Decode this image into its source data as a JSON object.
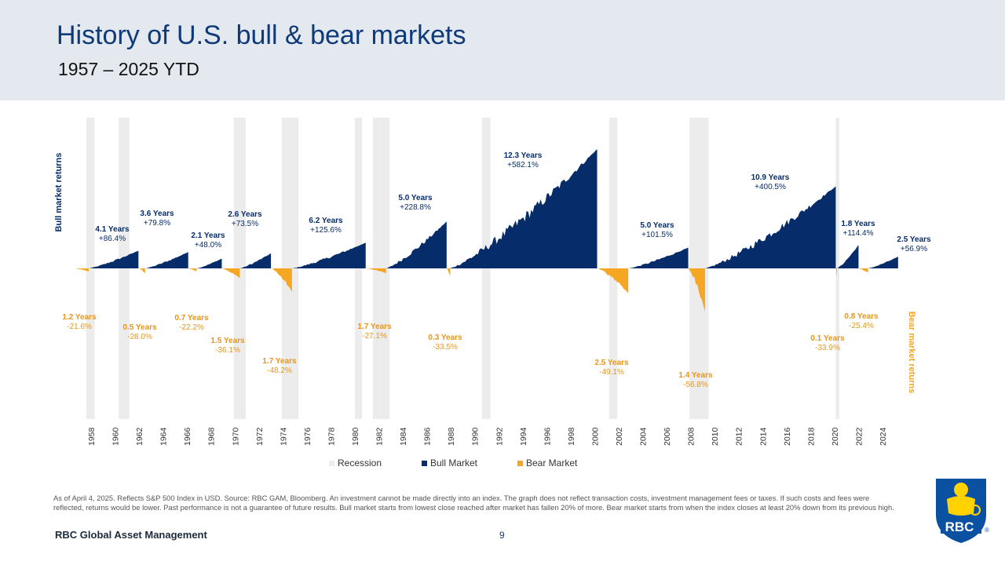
{
  "header": {
    "title": "History of U.S. bull & bear markets",
    "subtitle": "1957 – 2025 YTD"
  },
  "legend": {
    "recession": "Recession",
    "bull": "Bull Market",
    "bear": "Bear Market"
  },
  "colors": {
    "bull": "#062d6a",
    "bear": "#f5a623",
    "recession": "#ececec",
    "header_bg": "#e3e9ee",
    "title": "#0f3a7a"
  },
  "footnote": "As of April 4, 2025. Reflects S&P 500 Index in USD. Source: RBC GAM, Bloomberg. An investment cannot be made directly into an index. The graph does not reflect transaction costs, investment management fees or taxes. If such costs and fees were reflected, returns would be lower. Past performance is not a guarantee of future results. Bull market starts from lowest close reached after market has fallen 20% of more. Bear market starts from when the index closes at least 20% down from its previous high.",
  "brand": "RBC Global Asset Management",
  "page_number": "9",
  "logo_text": "RBC",
  "logo_icon": "rbc-lion-shield-logo",
  "chart_data": {
    "type": "area",
    "x_axis": {
      "ticks": [
        "1958",
        "1960",
        "1962",
        "1964",
        "1966",
        "1968",
        "1970",
        "1972",
        "1974",
        "1976",
        "1978",
        "1980",
        "1982",
        "1984",
        "1986",
        "1988",
        "1990",
        "1992",
        "1994",
        "1996",
        "1998",
        "2000",
        "2002",
        "2004",
        "2006",
        "2008",
        "2010",
        "2012",
        "2014",
        "2016",
        "2018",
        "2020",
        "2022",
        "2024"
      ]
    },
    "y_axis_labels": {
      "top": "Bull market returns",
      "bottom": "Bear market returns"
    },
    "recessions": [
      {
        "start": 1957.6,
        "end": 1958.3
      },
      {
        "start": 1960.3,
        "end": 1961.2
      },
      {
        "start": 1969.9,
        "end": 1970.9
      },
      {
        "start": 1973.9,
        "end": 1975.3
      },
      {
        "start": 1980.0,
        "end": 1980.6
      },
      {
        "start": 1981.5,
        "end": 1982.9
      },
      {
        "start": 1990.6,
        "end": 1991.3
      },
      {
        "start": 2001.2,
        "end": 2001.9
      },
      {
        "start": 2007.9,
        "end": 2009.5
      },
      {
        "start": 2020.1,
        "end": 2020.4
      }
    ],
    "bull_markets": [
      {
        "start": 1957.8,
        "end": 1961.95,
        "duration": "4.1 Years",
        "return": 86.4,
        "label": "+86.4%"
      },
      {
        "start": 1962.5,
        "end": 1966.1,
        "duration": "3.6 Years",
        "return": 79.8,
        "label": "+79.8%"
      },
      {
        "start": 1966.8,
        "end": 1968.9,
        "duration": "2.1 Years",
        "return": 48.0,
        "label": "+48.0%"
      },
      {
        "start": 1970.4,
        "end": 1973.0,
        "duration": "2.6 Years",
        "return": 73.5,
        "label": "+73.5%"
      },
      {
        "start": 1974.75,
        "end": 1980.9,
        "duration": "6.2 Years",
        "return": 125.6,
        "label": "+125.6%"
      },
      {
        "start": 1982.6,
        "end": 1987.65,
        "duration": "5.0 Years",
        "return": 228.8,
        "label": "+228.8%"
      },
      {
        "start": 1987.9,
        "end": 2000.2,
        "duration": "12.3 Years",
        "return": 582.1,
        "label": "+582.1%"
      },
      {
        "start": 2002.8,
        "end": 2007.8,
        "duration": "5.0 Years",
        "return": 101.5,
        "label": "+101.5%"
      },
      {
        "start": 2009.2,
        "end": 2020.1,
        "duration": "10.9 Years",
        "return": 400.5,
        "label": "+400.5%"
      },
      {
        "start": 2020.2,
        "end": 2022.0,
        "duration": "1.8 Years",
        "return": 114.4,
        "label": "+114.4%"
      },
      {
        "start": 2022.8,
        "end": 2025.3,
        "duration": "2.5 Years",
        "return": 56.9,
        "label": "+56.9%"
      }
    ],
    "bear_markets": [
      {
        "start": 1956.6,
        "end": 1957.8,
        "duration": "1.2 Years",
        "return": -21.6,
        "label": "-21.6%"
      },
      {
        "start": 1962.0,
        "end": 1962.5,
        "duration": "0.5 Years",
        "return": -28.0,
        "label": "-28.0%"
      },
      {
        "start": 1966.1,
        "end": 1966.8,
        "duration": "0.7 Years",
        "return": -22.2,
        "label": "-22.2%"
      },
      {
        "start": 1968.9,
        "end": 1970.4,
        "duration": "1.5 Years",
        "return": -36.1,
        "label": "-36.1%"
      },
      {
        "start": 1973.05,
        "end": 1974.75,
        "duration": "1.7 Years",
        "return": -48.2,
        "label": "-48.2%"
      },
      {
        "start": 1980.9,
        "end": 1982.6,
        "duration": "1.7 Years",
        "return": -27.1,
        "label": "-27.1%"
      },
      {
        "start": 1987.65,
        "end": 1987.95,
        "duration": "0.3 Years",
        "return": -33.5,
        "label": "-33.5%"
      },
      {
        "start": 2000.2,
        "end": 2002.8,
        "duration": "2.5 Years",
        "return": -49.1,
        "label": "-49.1%"
      },
      {
        "start": 2007.8,
        "end": 2009.2,
        "duration": "1.4 Years",
        "return": -56.8,
        "label": "-56.8%"
      },
      {
        "start": 2020.1,
        "end": 2020.2,
        "duration": "0.1 Years",
        "return": -33.9,
        "label": "-33.9%"
      },
      {
        "start": 2022.0,
        "end": 2022.8,
        "duration": "0.8 Years",
        "return": -25.4,
        "label": "-25.4%"
      }
    ]
  }
}
